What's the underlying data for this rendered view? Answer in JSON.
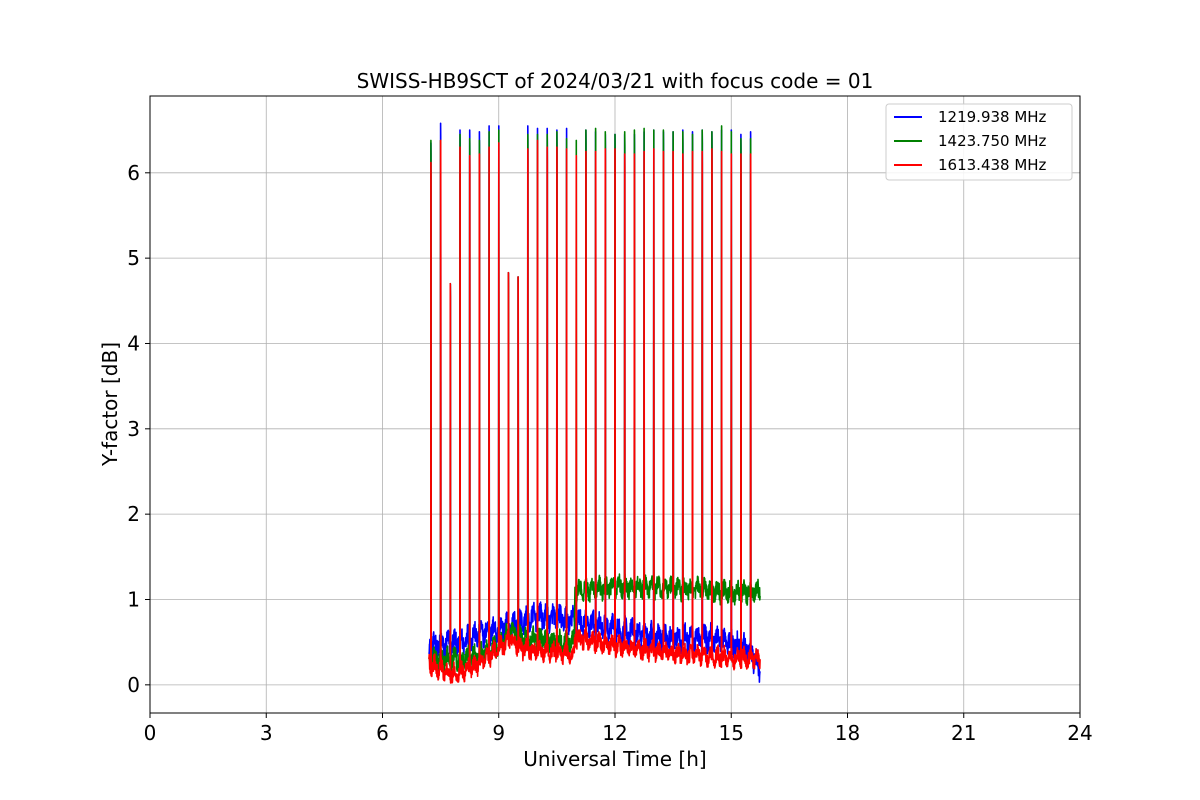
{
  "chart_data": {
    "type": "line",
    "title": "SWISS-HB9SCT of 2024/03/21 with focus code = 01",
    "xlabel": "Universal Time [h]",
    "ylabel": "Y-factor [dB]",
    "xlim": [
      0,
      24
    ],
    "ylim": [
      -0.33,
      6.9
    ],
    "x_ticks": [
      0,
      3,
      6,
      9,
      12,
      15,
      18,
      21,
      24
    ],
    "x_tick_labels": [
      "0",
      "3",
      "6",
      "9",
      "12",
      "15",
      "18",
      "21",
      "24"
    ],
    "y_ticks": [
      0,
      1,
      2,
      3,
      4,
      5,
      6
    ],
    "y_tick_labels": [
      "0",
      "1",
      "2",
      "3",
      "4",
      "5",
      "6"
    ],
    "grid": true,
    "legend_position": "top-right",
    "data_range_h": [
      7.2,
      15.75
    ],
    "calibration_spike_times_h": [
      7.25,
      7.5,
      7.75,
      8.0,
      8.25,
      8.5,
      8.75,
      9.0,
      9.25,
      9.5,
      9.75,
      10.0,
      10.25,
      10.5,
      10.75,
      11.0,
      11.25,
      11.5,
      11.75,
      12.0,
      12.25,
      12.5,
      12.75,
      13.0,
      13.25,
      13.5,
      13.75,
      14.0,
      14.25,
      14.5,
      14.75,
      15.0,
      15.25,
      15.5
    ],
    "series": [
      {
        "name": "1219.938 MHz",
        "color": "#0000ff",
        "baseline_profile": [
          [
            7.2,
            0.45
          ],
          [
            8.0,
            0.5
          ],
          [
            8.5,
            0.6
          ],
          [
            9.0,
            0.65
          ],
          [
            9.5,
            0.72
          ],
          [
            10.0,
            0.8
          ],
          [
            10.5,
            0.78
          ],
          [
            10.9,
            0.75
          ],
          [
            11.5,
            0.7
          ],
          [
            12.5,
            0.6
          ],
          [
            13.5,
            0.55
          ],
          [
            14.5,
            0.55
          ],
          [
            15.0,
            0.5
          ],
          [
            15.5,
            0.4
          ],
          [
            15.75,
            0.15
          ]
        ],
        "noise": 0.12,
        "spike_peaks": [
          6.35,
          6.58,
          4.7,
          6.5,
          6.5,
          6.48,
          6.55,
          6.55,
          4.83,
          4.78,
          6.55,
          6.52,
          6.52,
          6.5,
          6.52,
          1.72,
          6.5,
          6.48,
          6.45,
          6.45,
          6.45,
          6.45,
          6.48,
          6.5,
          6.48,
          6.48,
          6.5,
          6.48,
          6.5,
          6.48,
          6.5,
          6.5,
          6.45,
          6.48
        ]
      },
      {
        "name": "1423.750 MHz",
        "color": "#008000",
        "baseline_profile": [
          [
            7.2,
            0.3
          ],
          [
            8.0,
            0.3
          ],
          [
            8.5,
            0.35
          ],
          [
            9.0,
            0.45
          ],
          [
            9.3,
            0.65
          ],
          [
            9.6,
            0.55
          ],
          [
            10.0,
            0.55
          ],
          [
            10.5,
            0.5
          ],
          [
            10.95,
            0.5
          ],
          [
            10.96,
            1.1
          ],
          [
            12.0,
            1.15
          ],
          [
            13.0,
            1.15
          ],
          [
            14.0,
            1.12
          ],
          [
            15.0,
            1.08
          ],
          [
            15.75,
            1.1
          ]
        ],
        "noise": 0.1,
        "spike_peaks": [
          6.38,
          6.38,
          4.7,
          6.45,
          6.4,
          6.38,
          6.48,
          6.5,
          4.83,
          4.78,
          6.45,
          6.45,
          6.45,
          6.48,
          6.4,
          6.38,
          6.5,
          6.52,
          6.48,
          6.45,
          6.48,
          6.5,
          6.52,
          6.5,
          6.5,
          6.48,
          6.48,
          6.45,
          6.5,
          6.48,
          6.55,
          6.48,
          6.4,
          6.4
        ]
      },
      {
        "name": "1613.438 MHz",
        "color": "#ff0000",
        "baseline_profile": [
          [
            7.2,
            0.25
          ],
          [
            7.8,
            0.12
          ],
          [
            8.5,
            0.25
          ],
          [
            9.0,
            0.42
          ],
          [
            9.3,
            0.55
          ],
          [
            9.6,
            0.42
          ],
          [
            10.5,
            0.38
          ],
          [
            10.95,
            0.35
          ],
          [
            10.96,
            0.55
          ],
          [
            11.5,
            0.5
          ],
          [
            12.5,
            0.42
          ],
          [
            13.5,
            0.38
          ],
          [
            14.5,
            0.33
          ],
          [
            15.75,
            0.3
          ]
        ],
        "noise": 0.09,
        "spike_peaks": [
          6.12,
          6.38,
          4.7,
          6.3,
          6.2,
          6.22,
          6.3,
          6.35,
          4.83,
          4.78,
          6.28,
          6.38,
          6.3,
          6.3,
          6.28,
          6.2,
          6.25,
          6.25,
          6.28,
          6.28,
          6.22,
          6.22,
          6.25,
          6.28,
          6.25,
          6.25,
          6.22,
          6.25,
          6.25,
          6.28,
          6.25,
          6.22,
          6.22,
          6.22
        ]
      }
    ]
  }
}
